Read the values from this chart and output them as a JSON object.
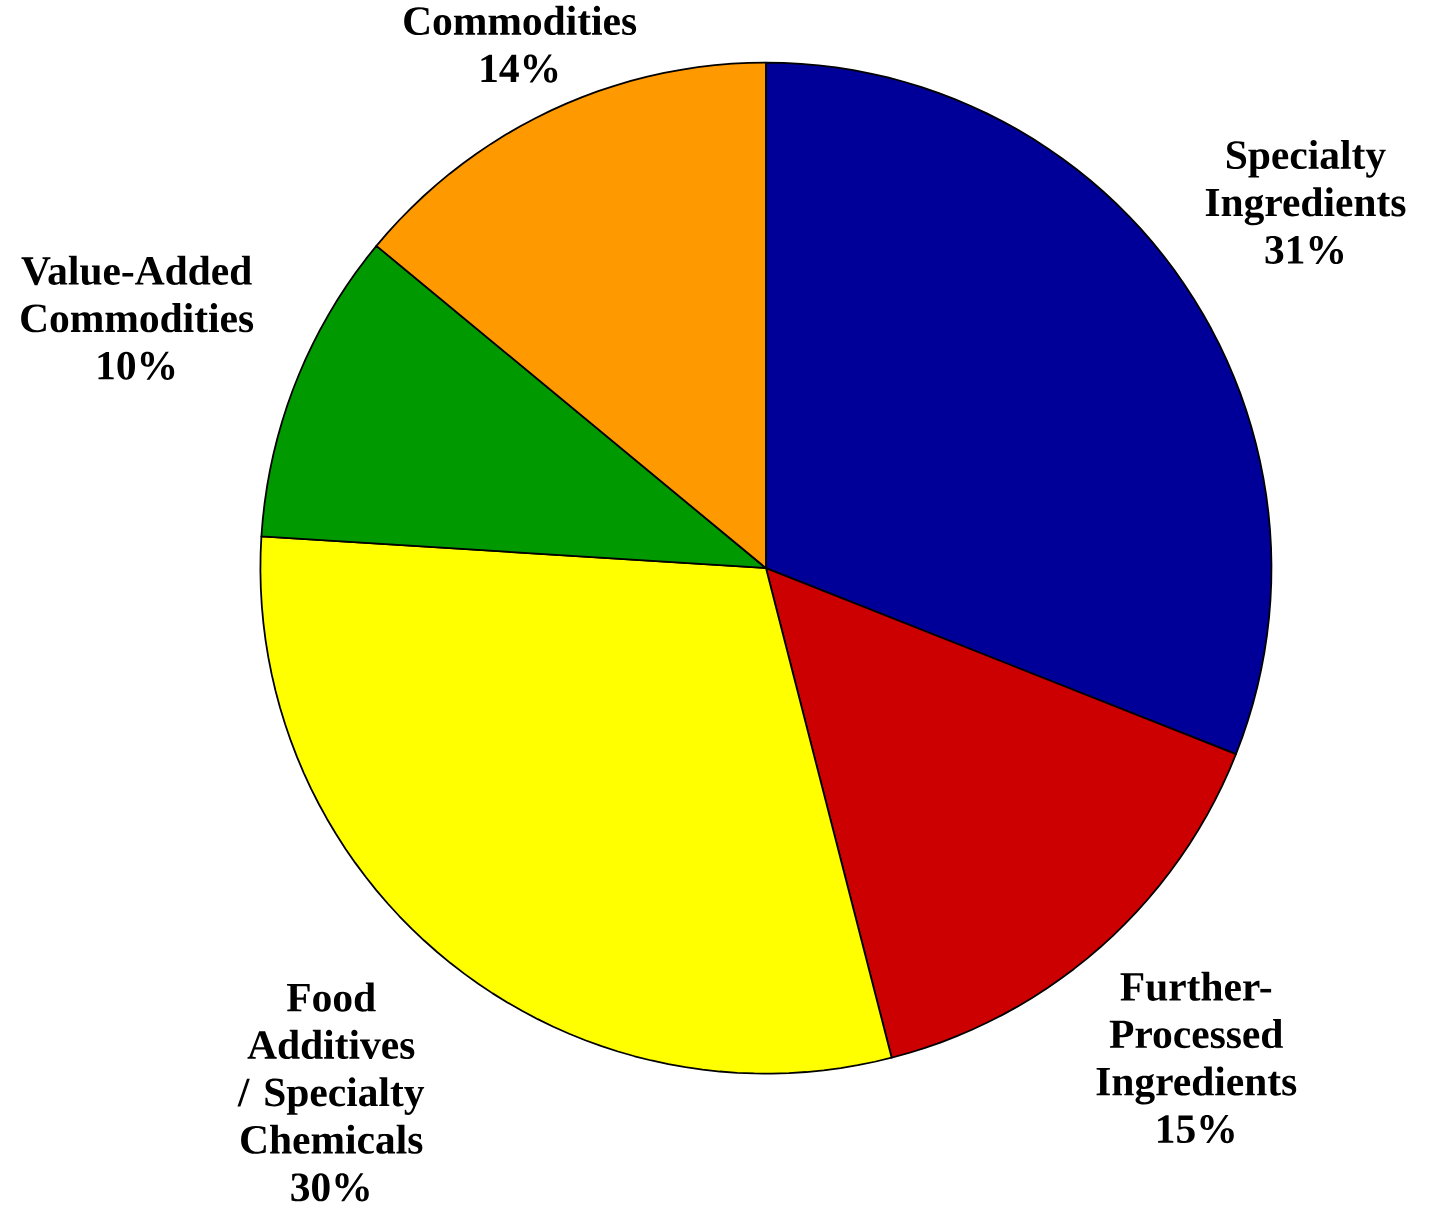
{
  "chart_data": {
    "type": "pie",
    "categories": [
      "Specialty Ingredients",
      "Further-Processed Ingredients",
      "Food Additives / Specialty Chemicals",
      "Value-Added Commodities",
      "Commodities"
    ],
    "values": [
      31,
      15,
      30,
      10,
      14
    ],
    "value_labels": [
      "31%",
      "15%",
      "30%",
      "10%",
      "14%"
    ],
    "colors": [
      "#000099",
      "#cc0000",
      "#ffff00",
      "#009900",
      "#ff9900"
    ]
  }
}
